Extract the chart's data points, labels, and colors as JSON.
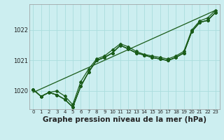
{
  "title": "Graphe pression niveau de la mer (hPa)",
  "bg_color": "#cceef0",
  "grid_color": "#aadddd",
  "line_color": "#1a5c1a",
  "xlim": [
    -0.5,
    23.5
  ],
  "ylim": [
    1019.4,
    1022.85
  ],
  "xticks": [
    0,
    1,
    2,
    3,
    4,
    5,
    6,
    7,
    8,
    9,
    10,
    11,
    12,
    13,
    14,
    15,
    16,
    17,
    18,
    19,
    20,
    21,
    22,
    23
  ],
  "yticks": [
    1020,
    1021,
    1022
  ],
  "series": [
    [
      1020.05,
      1019.82,
      1019.95,
      1020.0,
      1019.83,
      1019.55,
      1020.3,
      1020.72,
      1021.05,
      1021.15,
      1021.35,
      1021.55,
      1021.45,
      1021.3,
      1021.2,
      1021.15,
      1021.1,
      1021.05,
      1021.15,
      1021.3,
      1022.0,
      1022.3,
      1022.4,
      1022.65
    ],
    [
      1020.05,
      1019.82,
      1019.95,
      1019.87,
      1019.72,
      1019.47,
      1020.15,
      1020.62,
      1021.0,
      1021.1,
      1021.25,
      1021.5,
      1021.38,
      1021.25,
      1021.18,
      1021.1,
      1021.05,
      1021.0,
      1021.1,
      1021.25,
      1021.95,
      1022.25,
      1022.32,
      1022.58
    ],
    [
      1020.05,
      1019.82,
      1019.95,
      1019.87,
      1019.72,
      1019.47,
      1020.15,
      1020.62,
      1021.0,
      1021.1,
      1021.25,
      1021.5,
      1021.38,
      1021.25,
      1021.18,
      1021.1,
      1021.05,
      1021.0,
      1021.1,
      1021.25,
      1021.95,
      1022.25,
      1022.32,
      1022.58
    ],
    [
      1020.05,
      1019.82,
      1019.95,
      1019.87,
      1019.72,
      1019.47,
      1020.15,
      1020.62,
      1021.0,
      1021.1,
      1021.25,
      1021.5,
      1021.38,
      1021.25,
      1021.18,
      1021.1,
      1021.05,
      1021.0,
      1021.1,
      1021.25,
      1021.95,
      1022.25,
      1022.32,
      1022.58
    ]
  ],
  "straight_line": [
    1019.95,
    1022.65
  ],
  "marker": "D",
  "marker_size": 2.0,
  "linewidth": 0.9,
  "title_fontsize": 7.5,
  "tick_fontsize": 5.0,
  "ylabel_fontsize": 6.0
}
